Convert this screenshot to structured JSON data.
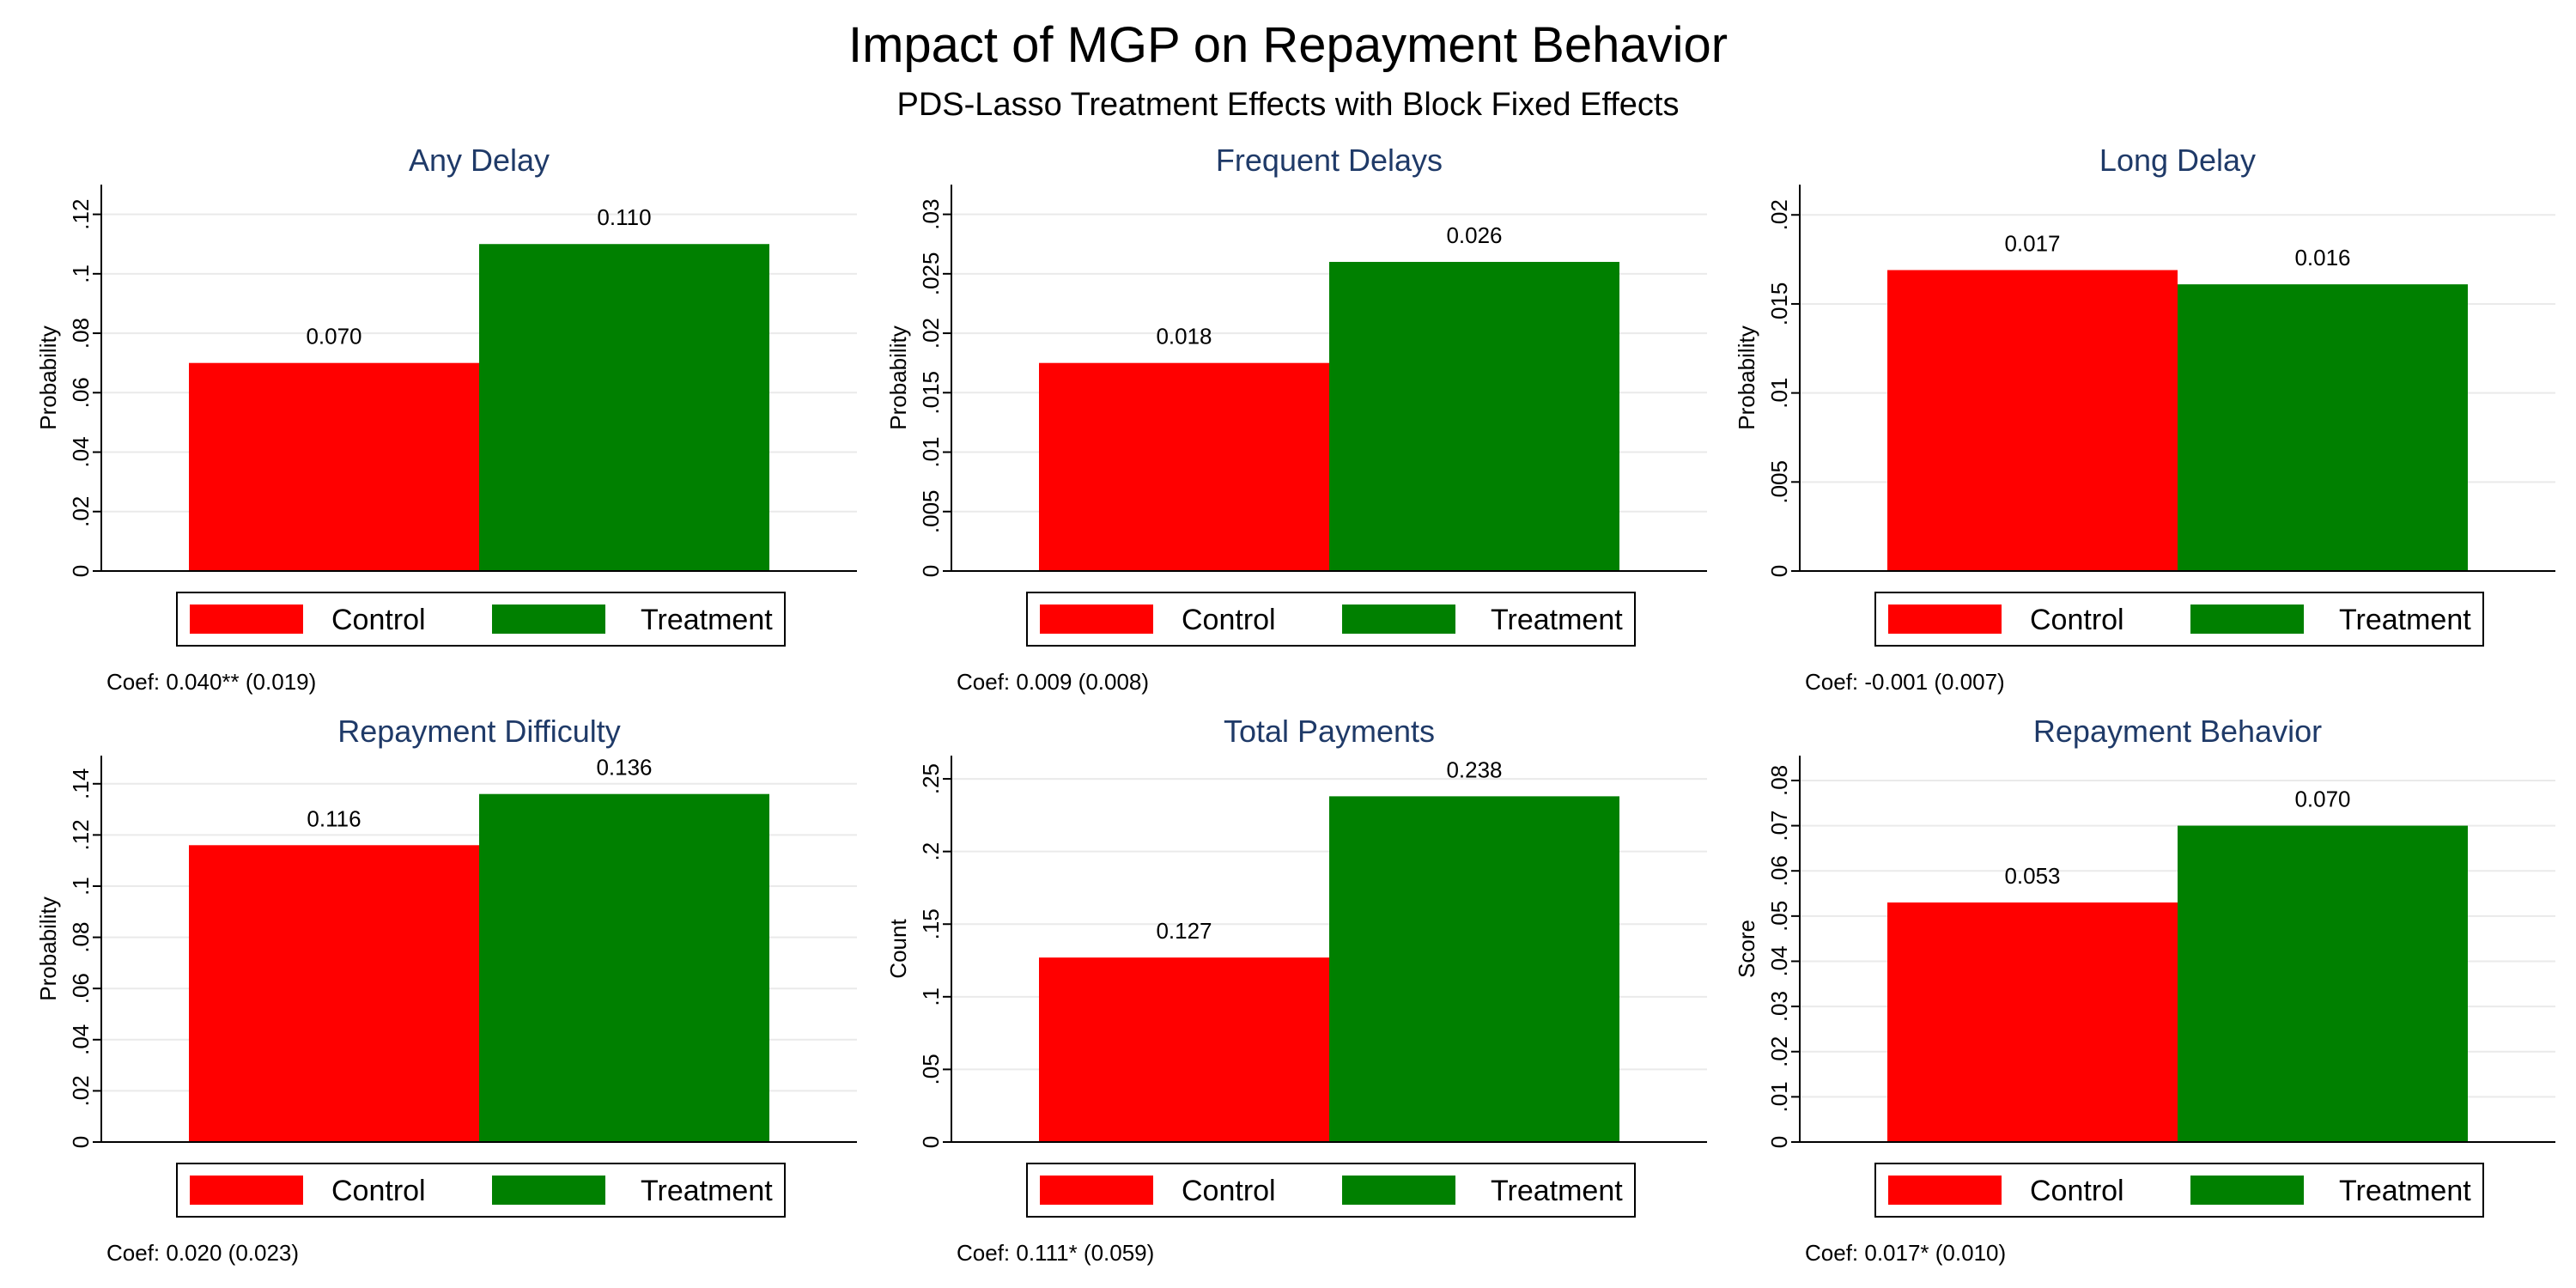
{
  "title": "Impact of MGP on Repayment Behavior",
  "subtitle": "PDS-Lasso Treatment Effects with Block Fixed Effects",
  "colors": {
    "control": "#ff0000",
    "treatment": "#008000",
    "title_blue": "#1f3a68",
    "grid": "#eaeaea",
    "axis": "#000000"
  },
  "chart_data": [
    {
      "type": "bar",
      "title": "Any Delay",
      "ylabel": "Probability",
      "categories": [
        "Control",
        "Treatment"
      ],
      "values": [
        0.07,
        0.11
      ],
      "data_labels": [
        "0.070",
        "0.110"
      ],
      "ylim": [
        0,
        0.13
      ],
      "yticks": [
        0,
        0.02,
        0.04,
        0.06,
        0.08,
        0.1,
        0.12
      ],
      "ytick_labels": [
        "0",
        ".02",
        ".04",
        ".06",
        ".08",
        ".1",
        ".12"
      ],
      "legend": [
        "Control",
        "Treatment"
      ],
      "note": "Coef: 0.040** (0.019)",
      "grid": true,
      "legend_position": "bottom"
    },
    {
      "type": "bar",
      "title": "Frequent Delays",
      "ylabel": "Probability",
      "categories": [
        "Control",
        "Treatment"
      ],
      "values": [
        0.0175,
        0.026
      ],
      "data_labels": [
        "0.018",
        "0.026"
      ],
      "ylim": [
        0,
        0.0325
      ],
      "yticks": [
        0,
        0.005,
        0.01,
        0.015,
        0.02,
        0.025,
        0.03
      ],
      "ytick_labels": [
        "0",
        ".005",
        ".01",
        ".015",
        ".02",
        ".025",
        ".03"
      ],
      "legend": [
        "Control",
        "Treatment"
      ],
      "note": "Coef: 0.009 (0.008)",
      "grid": true,
      "legend_position": "bottom"
    },
    {
      "type": "bar",
      "title": "Long Delay",
      "ylabel": "Probability",
      "categories": [
        "Control",
        "Treatment"
      ],
      "values": [
        0.0169,
        0.0161
      ],
      "data_labels": [
        "0.017",
        "0.016"
      ],
      "ylim": [
        0,
        0.0217
      ],
      "yticks": [
        0,
        0.005,
        0.01,
        0.015,
        0.02
      ],
      "ytick_labels": [
        "0",
        ".005",
        ".01",
        ".015",
        ".02"
      ],
      "legend": [
        "Control",
        "Treatment"
      ],
      "note": "Coef: -0.001 (0.007)",
      "grid": true,
      "legend_position": "bottom"
    },
    {
      "type": "bar",
      "title": "Repayment Difficulty",
      "ylabel": "Probability",
      "categories": [
        "Control",
        "Treatment"
      ],
      "values": [
        0.116,
        0.136
      ],
      "data_labels": [
        "0.116",
        "0.136"
      ],
      "ylim": [
        0,
        0.151
      ],
      "yticks": [
        0,
        0.02,
        0.04,
        0.06,
        0.08,
        0.1,
        0.12,
        0.14
      ],
      "ytick_labels": [
        "0",
        ".02",
        ".04",
        ".06",
        ".08",
        ".1",
        ".12",
        ".14"
      ],
      "legend": [
        "Control",
        "Treatment"
      ],
      "note": "Coef: 0.020 (0.023)",
      "grid": true,
      "legend_position": "bottom"
    },
    {
      "type": "bar",
      "title": "Total Payments",
      "ylabel": "Count",
      "categories": [
        "Control",
        "Treatment"
      ],
      "values": [
        0.127,
        0.238
      ],
      "data_labels": [
        "0.127",
        "0.238"
      ],
      "ylim": [
        0,
        0.266
      ],
      "yticks": [
        0,
        0.05,
        0.1,
        0.15,
        0.2,
        0.25
      ],
      "ytick_labels": [
        "0",
        ".05",
        ".1",
        ".15",
        ".2",
        ".25"
      ],
      "legend": [
        "Control",
        "Treatment"
      ],
      "note": "Coef: 0.111* (0.059)",
      "grid": true,
      "legend_position": "bottom"
    },
    {
      "type": "bar",
      "title": "Repayment Behavior",
      "ylabel": "Score",
      "categories": [
        "Control",
        "Treatment"
      ],
      "values": [
        0.053,
        0.07
      ],
      "data_labels": [
        "0.053",
        "0.070"
      ],
      "ylim": [
        0,
        0.0855
      ],
      "yticks": [
        0,
        0.01,
        0.02,
        0.03,
        0.04,
        0.05,
        0.06,
        0.07,
        0.08
      ],
      "ytick_labels": [
        "0",
        ".01",
        ".02",
        ".03",
        ".04",
        ".05",
        ".06",
        ".07",
        ".08"
      ],
      "legend": [
        "Control",
        "Treatment"
      ],
      "note": "Coef: 0.017* (0.010)",
      "grid": true,
      "legend_position": "bottom"
    }
  ]
}
